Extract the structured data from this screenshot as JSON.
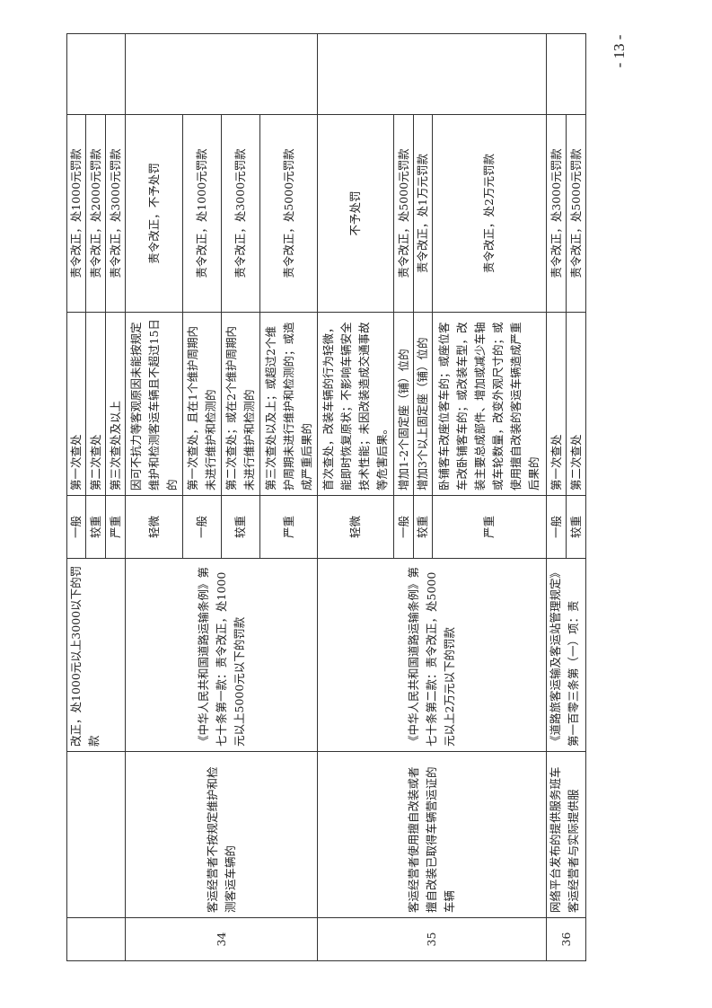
{
  "rows": {
    "prev": {
      "legal": "改正，处1000元以上3000以下的罚款",
      "items": [
        {
          "level": "一般",
          "case": "第一次查处",
          "penalty": "责令改正，处1000元罚款"
        },
        {
          "level": "较重",
          "case": "第二次查处",
          "penalty": "责令改正，处2000元罚款"
        },
        {
          "level": "严重",
          "case": "第三次查处及以上",
          "penalty": "责令改正，处3000元罚款"
        }
      ]
    },
    "r34": {
      "seq": "34",
      "desc": "客运经营者不按规定维护和检测客运车辆的",
      "legal": "《中华人民共和国道路运输条例》第七十条第一款：责令改正，处1000元以上5000元以下的罚款",
      "items": [
        {
          "level": "轻微",
          "case": "因可不抗力等客观原因未能按规定维护和检测客运车辆且不超过15日的",
          "penalty": "责令改正，不予处罚"
        },
        {
          "level": "一般",
          "case": "第一次查处，且在1个维护周期内未进行维护和检测的",
          "penalty": "责令改正，处1000元罚款"
        },
        {
          "level": "较重",
          "case": "第二次查处；或在2个维护周期内未进行维护和检测的",
          "penalty": "责令改正，处3000元罚款"
        },
        {
          "level": "严重",
          "case": "第三次查处以及上；或超过2个维护周期未进行维护和检测的；或造成严重后果的",
          "penalty": "责令改正，处5000元罚款"
        }
      ]
    },
    "r35": {
      "seq": "35",
      "desc": "客运经营者使用擅自改装或者擅自改装已取得车辆营运证的车辆",
      "legal": "《中华人民共和国道路运输条例》第七十条第二款：责令改正，处5000元以上2万元以下的罚款",
      "items": [
        {
          "level": "轻微",
          "case": "首次查处，改装车辆的行为轻微，能即时恢复原状；不影响车辆安全技术性能；未因改装造成交通事故等危害后果。",
          "penalty": "不予处罚"
        },
        {
          "level": "一般",
          "case": "增加1-2个固定座（铺）位的",
          "penalty": "责令改正，处5000元罚款"
        },
        {
          "level": "较重",
          "case": "增加3个以上固定座（铺）位的",
          "penalty": "责令改正，处1万元罚款"
        },
        {
          "level": "严重",
          "case": "卧铺客车改座位客车的；或座位客车改卧铺客车的；或改装车型，改装主要总成部件、增加或减少车轴或车轮数量，改变外观尺寸的；或使用擅自改装的客运车辆造成严重后果的",
          "penalty": "责令改正，处2万元罚款"
        }
      ]
    },
    "r36": {
      "seq": "36",
      "desc": "网络平台发布的提供服务班车客运经营者与实际提供服",
      "legal": "《道路旅客运输及客运站管理规定》第一百零三条第（一）项：责",
      "items": [
        {
          "level": "一般",
          "case": "第一次查处",
          "penalty": "责令改正，处3000元罚款"
        },
        {
          "level": "较重",
          "case": "第二次查处",
          "penalty": "责令改正，处5000元罚款"
        }
      ]
    }
  },
  "page_number": "- 13 -"
}
